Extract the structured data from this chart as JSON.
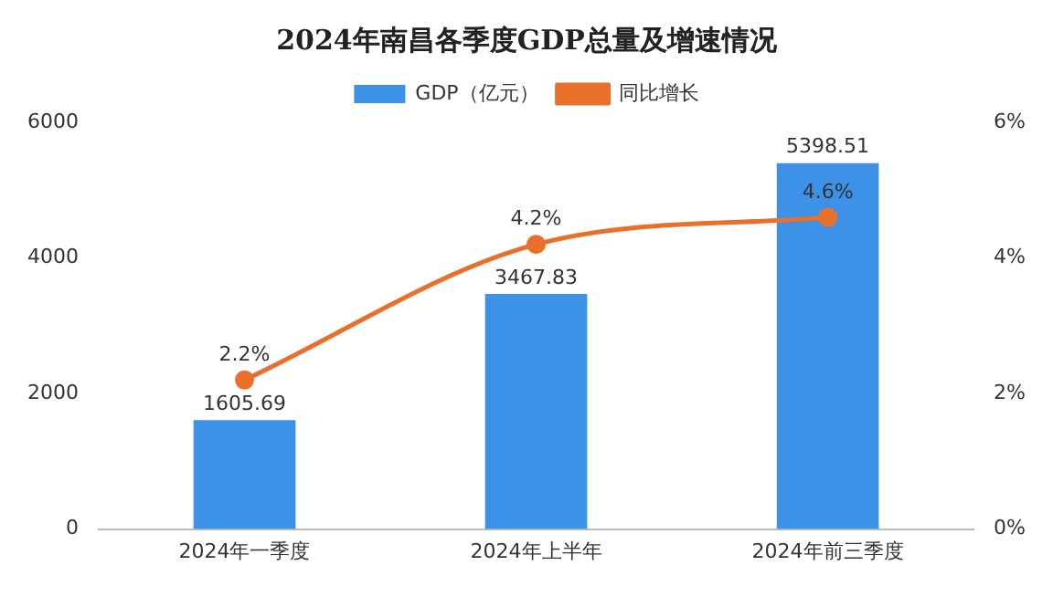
{
  "chart_data": {
    "type": "bar",
    "title": "2024年南昌各季度GDP总量及增速情况",
    "categories": [
      "2024年一季度",
      "2024年上半年",
      "2024年前三季度"
    ],
    "series": [
      {
        "name": "GDP（亿元）",
        "color": "#3d91e6",
        "values": [
          1605.69,
          3467.83,
          5398.51
        ],
        "value_labels": [
          "1605.69",
          "3467.83",
          "5398.51"
        ]
      },
      {
        "name": "同比增长",
        "type": "line",
        "axis": "y2",
        "color": "#e8702a",
        "marker": "circle",
        "values": [
          2.2,
          4.2,
          4.6
        ],
        "value_labels": [
          "2.2%",
          "4.2%",
          "4.6%"
        ]
      }
    ],
    "ylim": [
      0,
      6000
    ],
    "yticks": [
      0,
      2000,
      4000,
      6000
    ],
    "y2lim": [
      0,
      6
    ],
    "y2ticks": [
      {
        "value": 0,
        "label": "0%"
      },
      {
        "value": 2,
        "label": "2%"
      },
      {
        "value": 4,
        "label": "4%"
      },
      {
        "value": 6,
        "label": "6%"
      }
    ],
    "grid": false,
    "legend": "top"
  }
}
